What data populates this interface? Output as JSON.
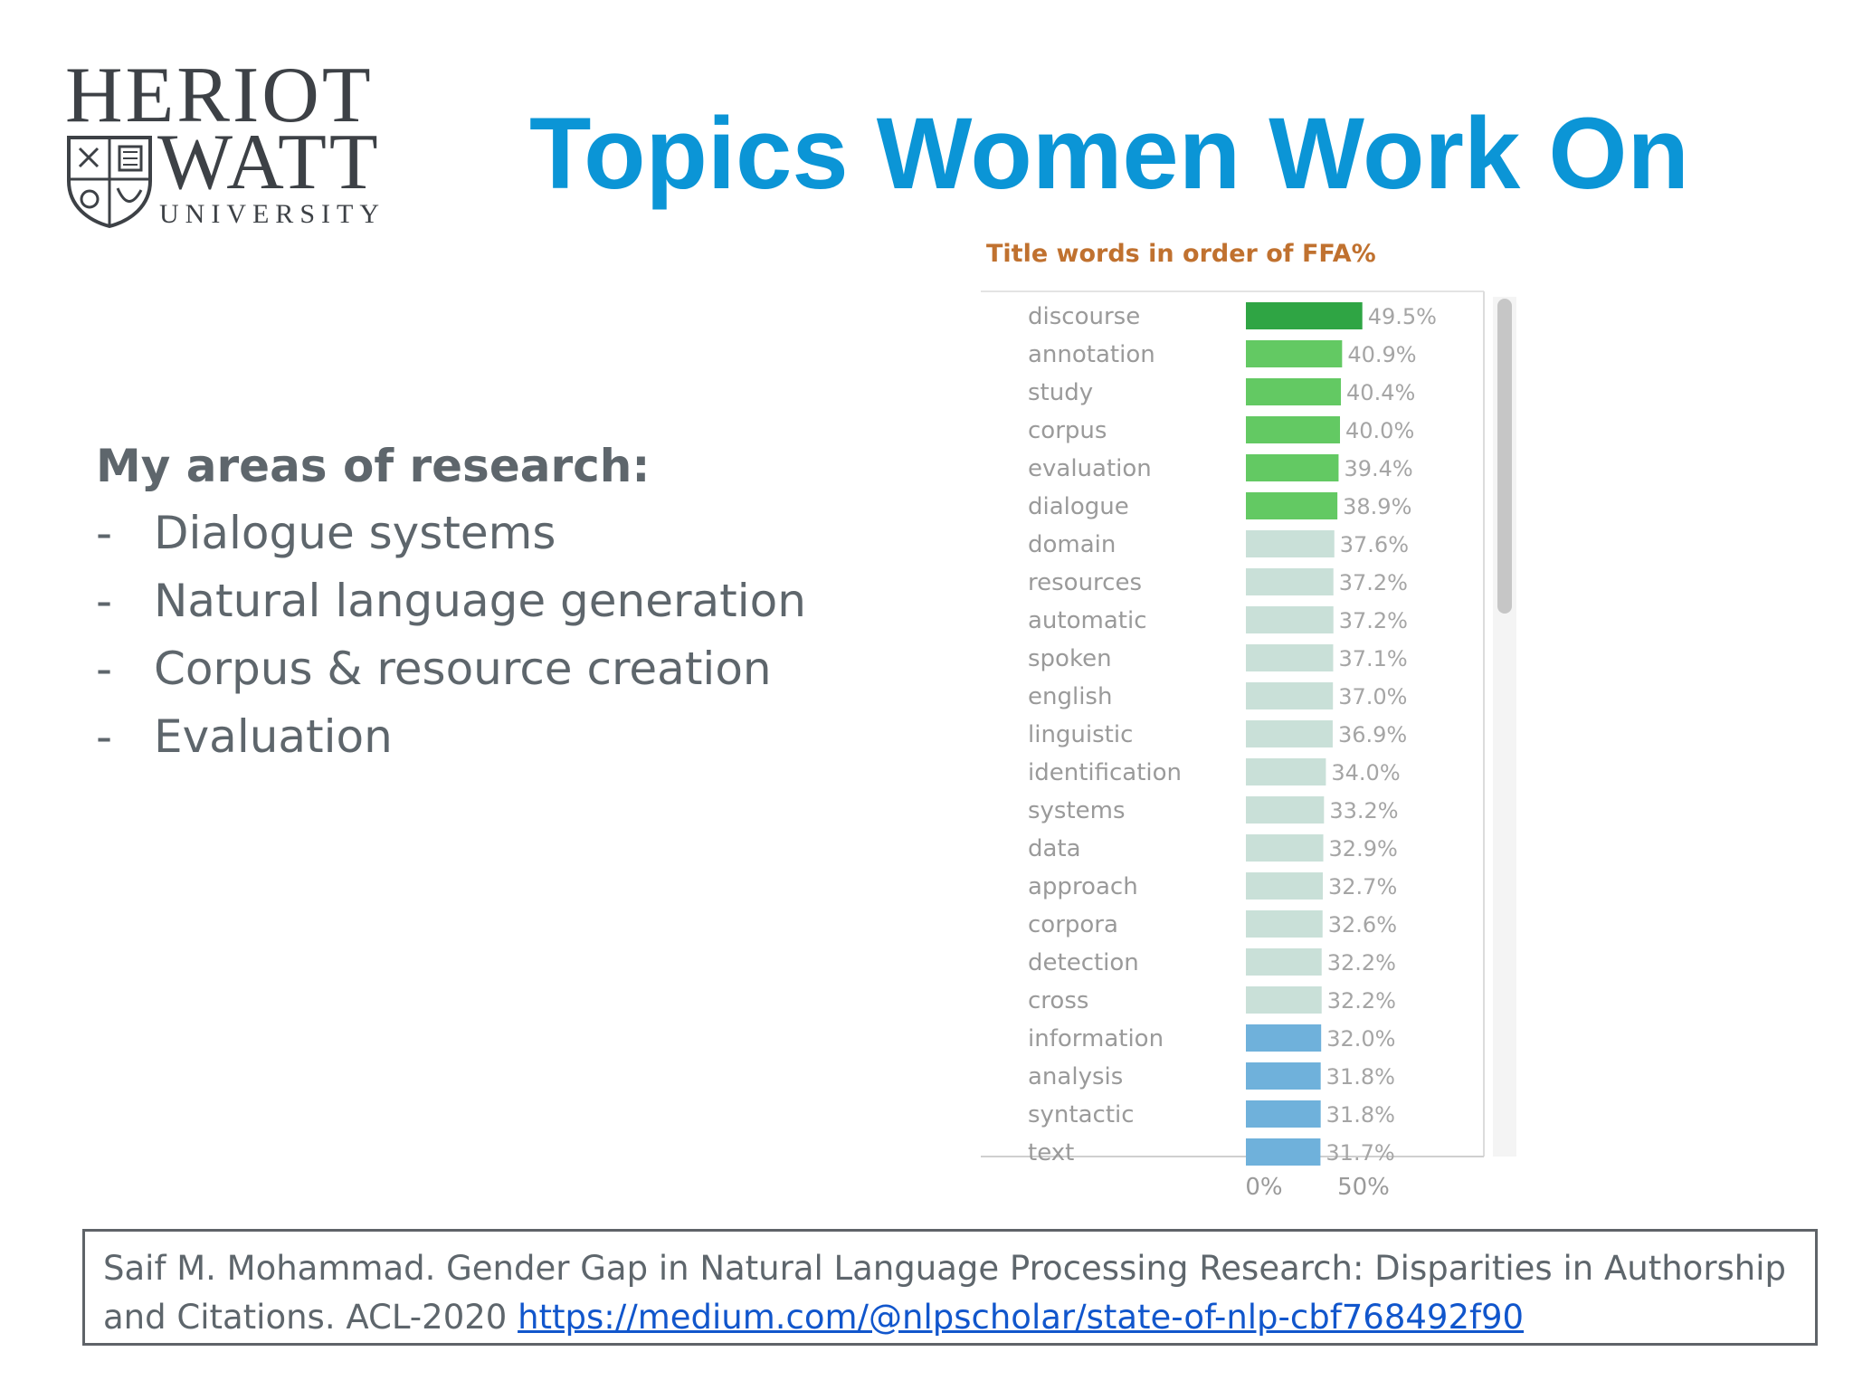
{
  "logo": {
    "line1": "HERIOT",
    "line2": "WATT",
    "line3": "UNIVERSITY",
    "icon": "crest-icon"
  },
  "title": "Topics Women Work On",
  "research": {
    "heading": "My areas of research:",
    "bullet": "-",
    "items": [
      "Dialogue systems",
      "Natural language generation",
      "Corpus & resource creation",
      "Evaluation"
    ]
  },
  "chart_data": {
    "type": "bar",
    "orientation": "horizontal",
    "title": "Title words in order of FFA%",
    "categories": [
      "discourse",
      "annotation",
      "study",
      "corpus",
      "evaluation",
      "dialogue",
      "domain",
      "resources",
      "automatic",
      "spoken",
      "english",
      "linguistic",
      "identification",
      "systems",
      "data",
      "approach",
      "corpora",
      "detection",
      "cross",
      "information",
      "analysis",
      "syntactic",
      "text"
    ],
    "values": [
      49.5,
      40.9,
      40.4,
      40.0,
      39.4,
      38.9,
      37.6,
      37.2,
      37.2,
      37.1,
      37.0,
      36.9,
      34.0,
      33.2,
      32.9,
      32.7,
      32.6,
      32.2,
      32.2,
      32.0,
      31.8,
      31.8,
      31.7
    ],
    "value_labels": [
      "49.5%",
      "40.9%",
      "40.4%",
      "40.0%",
      "39.4%",
      "38.9%",
      "37.6%",
      "37.2%",
      "37.2%",
      "37.1%",
      "37.0%",
      "36.9%",
      "34.0%",
      "33.2%",
      "32.9%",
      "32.7%",
      "32.6%",
      "32.2%",
      "32.2%",
      "32.0%",
      "31.8%",
      "31.8%",
      "31.7%"
    ],
    "xticks": [
      "0%",
      "50%"
    ],
    "xlim": [
      0,
      50
    ],
    "colors": {
      "dark_green": "#2fa544",
      "green": "#63c963",
      "pale": "#c9e0d8",
      "blue": "#6fb1db",
      "label": "#9a9a9a",
      "title": "#c0712f"
    },
    "color_by_bar": [
      "dark_green",
      "green",
      "green",
      "green",
      "green",
      "green",
      "pale",
      "pale",
      "pale",
      "pale",
      "pale",
      "pale",
      "pale",
      "pale",
      "pale",
      "pale",
      "pale",
      "pale",
      "pale",
      "blue",
      "blue",
      "blue",
      "blue"
    ]
  },
  "citation": {
    "text": "Saif M. Mohammad. Gender Gap in Natural Language Processing Research: Disparities in Authorship and Citations. ACL-2020 ",
    "link": "https://medium.com/@nlpscholar/state-of-nlp-cbf768492f90"
  }
}
